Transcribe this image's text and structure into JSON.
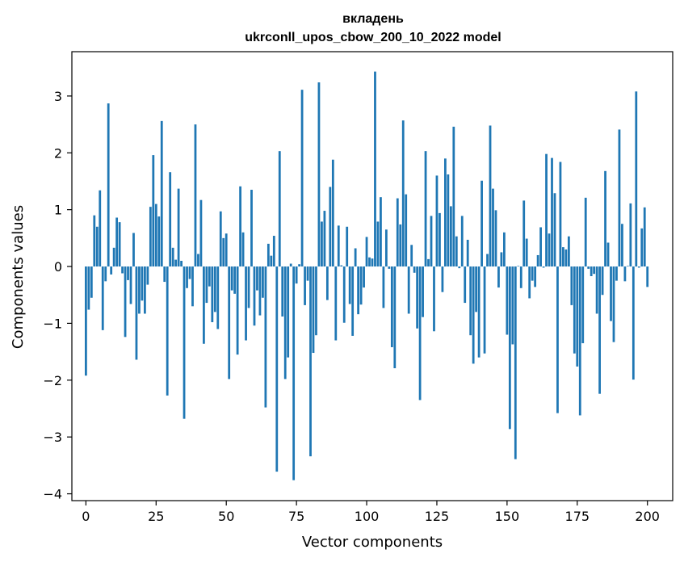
{
  "chart_data": {
    "type": "bar",
    "title_line1": "вкладень",
    "title_line2": "ukrconll_upos_cbow_200_10_2022 model",
    "xlabel": "Vector components",
    "ylabel": "Components values",
    "xlim": [
      -5,
      209
    ],
    "ylim": [
      -4.12,
      3.78
    ],
    "xticks": [
      0,
      25,
      50,
      75,
      100,
      125,
      150,
      175,
      200
    ],
    "yticks": [
      -4,
      -3,
      -2,
      -1,
      0,
      1,
      2,
      3
    ],
    "grid": false,
    "bar_color": "#1f77b4",
    "x_start": 0,
    "values": [
      -1.92,
      -0.76,
      -0.55,
      0.9,
      0.7,
      1.34,
      -1.12,
      -0.26,
      2.87,
      -0.14,
      0.33,
      0.86,
      0.78,
      -0.12,
      -1.24,
      -0.24,
      -0.66,
      0.59,
      -1.64,
      -0.83,
      -0.6,
      -0.83,
      -0.32,
      1.05,
      1.96,
      1.1,
      0.88,
      2.56,
      -0.27,
      -2.27,
      1.66,
      0.33,
      0.12,
      1.37,
      0.1,
      -2.68,
      -0.38,
      -0.22,
      -0.7,
      2.5,
      0.22,
      1.17,
      -1.36,
      -0.64,
      -0.35,
      -0.98,
      -0.8,
      -1.1,
      0.97,
      0.5,
      0.58,
      -1.98,
      -0.42,
      -0.48,
      -1.55,
      1.41,
      0.6,
      -1.3,
      -0.73,
      1.35,
      -1.04,
      -0.42,
      -0.86,
      -0.55,
      -2.48,
      0.4,
      0.19,
      0.54,
      -3.61,
      2.03,
      -0.88,
      -1.98,
      -1.6,
      0.05,
      -3.76,
      -0.3,
      0.04,
      3.11,
      -0.68,
      -0.25,
      -3.34,
      -1.52,
      -1.21,
      3.24,
      0.79,
      0.98,
      -0.59,
      1.4,
      1.88,
      -1.3,
      0.72,
      0.02,
      -0.99,
      0.7,
      -0.66,
      -1.22,
      0.32,
      -0.84,
      -0.67,
      -0.37,
      0.52,
      0.16,
      0.14,
      3.43,
      0.79,
      1.22,
      -0.73,
      0.65,
      -0.04,
      -1.42,
      -1.79,
      1.2,
      0.74,
      2.57,
      1.27,
      -0.83,
      0.38,
      -0.11,
      -1.09,
      -2.35,
      -0.89,
      2.03,
      0.13,
      0.89,
      -1.14,
      1.6,
      0.94,
      -0.45,
      1.9,
      1.62,
      1.06,
      2.46,
      0.53,
      -0.03,
      0.89,
      -0.64,
      0.47,
      -1.21,
      -1.71,
      -0.8,
      -1.6,
      1.51,
      -1.53,
      0.22,
      2.48,
      1.37,
      0.99,
      -0.37,
      0.25,
      0.6,
      -1.2,
      -2.86,
      -1.37,
      -3.39,
      0.01,
      -0.38,
      1.16,
      0.49,
      -0.56,
      -0.25,
      -0.36,
      0.2,
      0.69,
      -0.02,
      1.98,
      0.58,
      1.91,
      1.29,
      -2.58,
      1.84,
      0.34,
      0.3,
      0.53,
      -0.68,
      -1.53,
      -1.76,
      -2.62,
      -1.35,
      1.21,
      -0.04,
      -0.17,
      -0.13,
      -0.83,
      -2.24,
      -0.5,
      1.68,
      0.42,
      -0.96,
      -1.33,
      -0.25,
      2.41,
      0.75,
      -0.26,
      0.01,
      1.11,
      -1.99,
      3.08,
      -0.02,
      0.67,
      1.04,
      -0.36
    ]
  }
}
